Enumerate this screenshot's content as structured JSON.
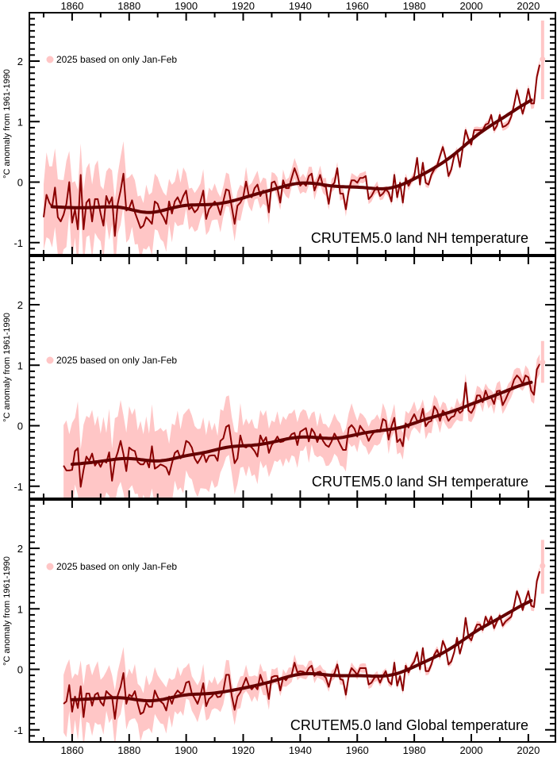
{
  "x_axis": {
    "range": [
      1845,
      2029.5
    ],
    "tick_labels": [
      1860,
      1880,
      1900,
      1920,
      1940,
      1960,
      1980,
      2000,
      2020
    ],
    "minor_step": 10
  },
  "colors": {
    "band": "#ffc6c6",
    "annual": "#8b0000",
    "smooth": "#650000",
    "axis": "#000000"
  },
  "chart_data": [
    {
      "type": "line",
      "title": "CRUTEM5.0 land NH temperature",
      "ylabel": "°C anomaly from 1961-1990",
      "ylim": [
        -1.2,
        2.8
      ],
      "y_tick_labels": [
        -1,
        0,
        1,
        2
      ],
      "legend": "2025 based on only Jan-Feb",
      "start_year": 1850,
      "values": [
        -0.58,
        -0.21,
        -0.34,
        -0.41,
        -0.09,
        -0.58,
        -0.65,
        -0.54,
        -0.36,
        0.0,
        -0.67,
        -0.45,
        -0.78,
        0.12,
        -0.78,
        -0.34,
        -0.28,
        -0.65,
        -0.28,
        -0.28,
        -0.52,
        -0.72,
        -0.23,
        -0.36,
        -0.25,
        -0.89,
        -0.36,
        -0.14,
        0.14,
        -0.47,
        -0.43,
        -0.3,
        -0.5,
        -0.63,
        -0.76,
        -0.72,
        -0.58,
        -0.63,
        -0.69,
        -0.32,
        -0.36,
        -0.5,
        -0.58,
        -0.69,
        -0.32,
        -0.52,
        -0.32,
        -0.25,
        -0.36,
        -0.23,
        -0.14,
        -0.45,
        -0.41,
        -0.5,
        -0.45,
        -0.32,
        -0.14,
        -0.61,
        -0.45,
        -0.39,
        -0.32,
        -0.39,
        -0.54,
        -0.32,
        -0.12,
        -0.14,
        -0.41,
        -0.69,
        -0.39,
        -0.34,
        -0.25,
        0.01,
        -0.23,
        -0.25,
        -0.1,
        -0.04,
        -0.23,
        -0.14,
        -0.17,
        -0.5,
        -0.01,
        0.01,
        -0.1,
        -0.34,
        0.03,
        -0.1,
        -0.1,
        0.07,
        0.23,
        0.1,
        -0.06,
        -0.01,
        -0.06,
        0.1,
        0.14,
        -0.14,
        -0.01,
        0.12,
        -0.06,
        -0.08,
        -0.36,
        -0.06,
        -0.01,
        0.23,
        -0.19,
        -0.19,
        -0.45,
        -0.14,
        0.03,
        0.03,
        -0.01,
        0.07,
        0.07,
        0.1,
        -0.28,
        -0.23,
        -0.14,
        -0.08,
        -0.23,
        -0.19,
        -0.12,
        -0.17,
        -0.32,
        0.12,
        -0.25,
        -0.01,
        -0.34,
        0.07,
        -0.06,
        0.03,
        0.1,
        0.4,
        -0.04,
        0.32,
        -0.01,
        -0.04,
        0.12,
        0.21,
        0.27,
        0.43,
        0.58,
        0.4,
        0.1,
        0.21,
        0.43,
        0.51,
        0.25,
        0.56,
        0.86,
        0.71,
        0.62,
        0.86,
        0.86,
        0.86,
        0.86,
        0.95,
        0.97,
        1.11,
        0.86,
        0.93,
        1.11,
        0.91,
        0.93,
        0.97,
        1.08,
        1.28,
        1.52,
        1.32,
        1.13,
        1.3,
        1.54,
        1.3,
        1.3,
        1.74,
        1.94
      ],
      "uncertainty_halfwidth_by_decade": [
        [
          1850,
          0.6
        ],
        [
          1860,
          0.55
        ],
        [
          1870,
          0.5
        ],
        [
          1880,
          0.45
        ],
        [
          1890,
          0.4
        ],
        [
          1900,
          0.3
        ],
        [
          1910,
          0.25
        ],
        [
          1920,
          0.2
        ],
        [
          1930,
          0.15
        ],
        [
          1940,
          0.13
        ],
        [
          1950,
          0.1
        ],
        [
          1960,
          0.08
        ],
        [
          1970,
          0.07
        ],
        [
          1980,
          0.06
        ],
        [
          1990,
          0.06
        ],
        [
          2000,
          0.05
        ],
        [
          2010,
          0.06
        ],
        [
          2020,
          0.08
        ]
      ],
      "partial_year": {
        "year": 2025,
        "value": 2.03,
        "lower": 1.37,
        "upper": 2.67
      }
    },
    {
      "type": "line",
      "title": "CRUTEM5.0 land SH temperature",
      "ylabel": "°C anomaly from 1961-1990",
      "ylim": [
        -1.2,
        2.8
      ],
      "y_tick_labels": [
        -1,
        0,
        1,
        2
      ],
      "legend": "2025 based on only Jan-Feb",
      "start_year": 1857,
      "values": [
        -0.66,
        -0.74,
        -0.74,
        -0.73,
        -0.42,
        -0.37,
        -1.01,
        -0.73,
        -0.51,
        -0.58,
        -0.46,
        -0.66,
        -0.59,
        -0.68,
        -0.57,
        -0.61,
        -0.44,
        -0.91,
        -0.58,
        -0.44,
        -0.25,
        -0.47,
        -0.75,
        -0.36,
        -0.4,
        -0.42,
        -0.6,
        -0.64,
        -0.64,
        -0.56,
        -0.69,
        -0.34,
        -0.71,
        -0.68,
        -0.64,
        -0.66,
        -0.69,
        -0.81,
        -0.62,
        -0.45,
        -0.41,
        -0.54,
        -0.47,
        -0.25,
        -0.28,
        -0.36,
        -0.54,
        -0.62,
        -0.54,
        -0.45,
        -0.6,
        -0.5,
        -0.49,
        -0.49,
        -0.58,
        -0.25,
        -0.21,
        -0.02,
        0.01,
        -0.32,
        -0.62,
        -0.54,
        -0.16,
        -0.34,
        -0.36,
        -0.32,
        -0.36,
        -0.42,
        -0.51,
        -0.16,
        -0.27,
        -0.19,
        -0.45,
        -0.32,
        -0.26,
        -0.18,
        -0.27,
        -0.26,
        -0.22,
        -0.21,
        -0.14,
        -0.12,
        -0.32,
        -0.1,
        -0.07,
        -0.04,
        -0.26,
        -0.05,
        -0.12,
        -0.27,
        -0.14,
        -0.25,
        -0.32,
        -0.35,
        -0.26,
        -0.13,
        -0.21,
        -0.31,
        -0.4,
        -0.4,
        -0.04,
        0.01,
        -0.05,
        -0.18,
        0.0,
        -0.07,
        -0.12,
        -0.25,
        -0.16,
        -0.1,
        -0.07,
        -0.1,
        0.11,
        0.08,
        -0.23,
        -0.01,
        0.13,
        -0.27,
        -0.22,
        -0.34,
        0.04,
        -0.03,
        0.1,
        0.19,
        0.08,
        0.08,
        0.28,
        -0.01,
        0.06,
        0.08,
        0.32,
        0.25,
        0.08,
        0.25,
        0.19,
        0.08,
        0.14,
        0.16,
        0.28,
        0.21,
        0.25,
        0.71,
        0.25,
        0.21,
        0.3,
        0.5,
        0.5,
        0.39,
        0.58,
        0.45,
        0.47,
        0.36,
        0.57,
        0.58,
        0.34,
        0.43,
        0.54,
        0.61,
        0.76,
        0.83,
        0.78,
        0.69,
        0.83,
        0.8,
        0.58,
        0.51,
        0.93,
        1.02
      ],
      "uncertainty_halfwidth_by_decade": [
        [
          1850,
          0.7
        ],
        [
          1860,
          0.65
        ],
        [
          1870,
          0.6
        ],
        [
          1880,
          0.6
        ],
        [
          1890,
          0.55
        ],
        [
          1900,
          0.5
        ],
        [
          1910,
          0.45
        ],
        [
          1920,
          0.4
        ],
        [
          1930,
          0.35
        ],
        [
          1940,
          0.3
        ],
        [
          1950,
          0.3
        ],
        [
          1960,
          0.22
        ],
        [
          1970,
          0.2
        ],
        [
          1980,
          0.18
        ],
        [
          1990,
          0.15
        ],
        [
          2000,
          0.14
        ],
        [
          2010,
          0.14
        ],
        [
          2020,
          0.15
        ]
      ],
      "partial_year": {
        "year": 2025,
        "value": 1.05,
        "lower": 0.71,
        "upper": 1.4
      }
    },
    {
      "type": "line",
      "title": "CRUTEM5.0 land Global temperature",
      "ylabel": "°C anomaly from 1961-1990",
      "ylim": [
        -1.2,
        2.8
      ],
      "y_tick_labels": [
        -1,
        0,
        1,
        2
      ],
      "legend": "2025 based on only Jan-Feb",
      "start_year": 1857,
      "values": [
        -0.57,
        -0.53,
        -0.26,
        -0.7,
        -0.45,
        -0.64,
        -0.28,
        -0.79,
        -0.4,
        -0.4,
        -0.6,
        -0.42,
        -0.39,
        -0.54,
        -0.6,
        -0.36,
        -0.41,
        -0.45,
        -0.82,
        -0.43,
        -0.29,
        -0.06,
        -0.57,
        -0.42,
        -0.45,
        -0.36,
        -0.57,
        -0.74,
        -0.71,
        -0.55,
        -0.62,
        -0.62,
        -0.35,
        -0.46,
        -0.53,
        -0.57,
        -0.68,
        -0.45,
        -0.57,
        -0.42,
        -0.35,
        -0.4,
        -0.38,
        -0.22,
        -0.2,
        -0.4,
        -0.48,
        -0.57,
        -0.43,
        -0.23,
        -0.61,
        -0.49,
        -0.45,
        -0.38,
        -0.46,
        -0.45,
        -0.36,
        -0.09,
        -0.09,
        -0.44,
        -0.67,
        -0.45,
        -0.38,
        -0.26,
        -0.14,
        -0.27,
        -0.33,
        -0.27,
        -0.33,
        -0.09,
        -0.23,
        -0.23,
        -0.49,
        -0.13,
        -0.11,
        -0.11,
        -0.35,
        -0.14,
        -0.18,
        -0.11,
        -0.09,
        0.11,
        -0.05,
        -0.03,
        -0.04,
        -0.07,
        0.02,
        0.06,
        -0.11,
        -0.05,
        -0.04,
        -0.09,
        -0.14,
        -0.29,
        -0.11,
        -0.07,
        0.08,
        -0.16,
        -0.18,
        -0.42,
        -0.11,
        0.02,
        -0.03,
        -0.09,
        0.02,
        0.02,
        0.02,
        -0.25,
        -0.22,
        -0.14,
        -0.11,
        -0.22,
        -0.11,
        -0.03,
        -0.2,
        -0.25,
        0.11,
        -0.27,
        -0.11,
        -0.35,
        0.06,
        -0.05,
        0.06,
        0.13,
        0.28,
        0.0,
        0.35,
        -0.03,
        -0.03,
        0.08,
        0.24,
        0.32,
        0.21,
        0.47,
        0.35,
        0.08,
        0.13,
        0.28,
        0.52,
        0.26,
        0.44,
        0.85,
        0.54,
        0.48,
        0.63,
        0.74,
        0.74,
        0.65,
        0.87,
        0.76,
        0.87,
        0.68,
        0.79,
        0.89,
        0.72,
        0.79,
        0.83,
        0.87,
        1.05,
        1.29,
        1.16,
        0.98,
        1.14,
        1.29,
        1.05,
        1.03,
        1.46,
        1.62
      ],
      "uncertainty_halfwidth_by_decade": [
        [
          1850,
          0.5
        ],
        [
          1860,
          0.45
        ],
        [
          1870,
          0.4
        ],
        [
          1880,
          0.38
        ],
        [
          1890,
          0.33
        ],
        [
          1900,
          0.27
        ],
        [
          1910,
          0.22
        ],
        [
          1920,
          0.18
        ],
        [
          1930,
          0.12
        ],
        [
          1940,
          0.1
        ],
        [
          1950,
          0.08
        ],
        [
          1960,
          0.07
        ],
        [
          1970,
          0.06
        ],
        [
          1980,
          0.06
        ],
        [
          1990,
          0.05
        ],
        [
          2000,
          0.05
        ],
        [
          2010,
          0.05
        ],
        [
          2020,
          0.07
        ]
      ],
      "partial_year": {
        "year": 2025,
        "value": 1.71,
        "lower": 1.25,
        "upper": 2.14
      }
    }
  ]
}
